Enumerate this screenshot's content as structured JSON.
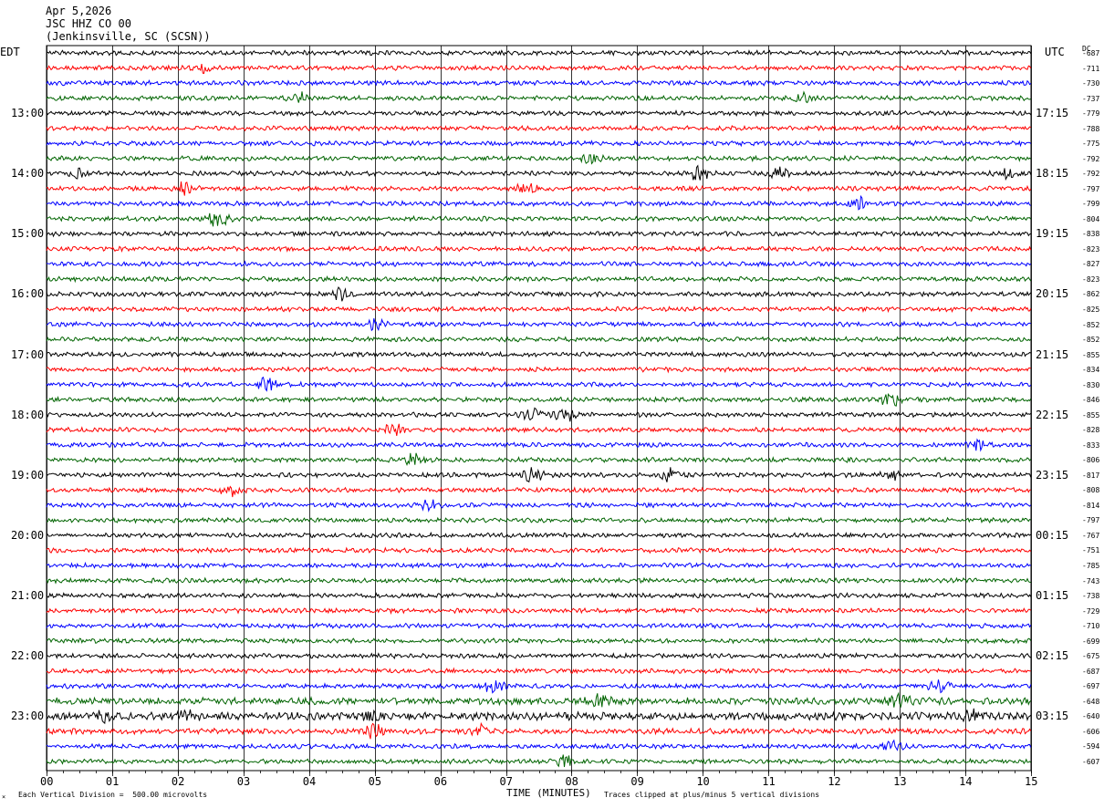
{
  "header": {
    "date": "Apr 5,2026",
    "station": "JSC HHZ CO 00",
    "location": "(Jenkinsville, SC (SCSN))"
  },
  "left_tz": "EDT",
  "right_tz": "UTC",
  "dc_header": "DC",
  "footer": {
    "scale_note": "Each Vertical Division =  500.00 microvolts",
    "clip_note": "Traces clipped at plus/minus 5 vertical divisions",
    "corner_mark": "×"
  },
  "colors": {
    "trace_cycle": [
      "#000000",
      "#ff0000",
      "#0000ff",
      "#006400"
    ],
    "grid": "#000000"
  },
  "chart_data": {
    "type": "line",
    "title": "JSC HHZ CO 00",
    "xlabel": "TIME (MINUTES)",
    "xlim": [
      0,
      15
    ],
    "x_ticks": [
      "00",
      "01",
      "02",
      "03",
      "04",
      "05",
      "06",
      "07",
      "08",
      "09",
      "10",
      "11",
      "12",
      "13",
      "14",
      "15"
    ],
    "trace_count": 48,
    "traces_per_hour": 4,
    "left_hour_labels": [
      "13:00",
      "14:00",
      "15:00",
      "16:00",
      "17:00",
      "18:00",
      "19:00",
      "20:00",
      "21:00",
      "22:00",
      "23:00"
    ],
    "right_hour_labels": [
      "17:15",
      "18:15",
      "19:15",
      "20:15",
      "21:15",
      "22:15",
      "23:15",
      "00:15",
      "01:15",
      "02:15",
      "03:15"
    ],
    "dc_offsets": [
      "-687",
      "-711",
      "-730",
      "-737",
      "-779",
      "-788",
      "-775",
      "-792",
      "-792",
      "-797",
      "-799",
      "-804",
      "-838",
      "-823",
      "-827",
      "-823",
      "-862",
      "-825",
      "-852",
      "-852",
      "-855",
      "-834",
      "-830",
      "-846",
      "-855",
      "-828",
      "-833",
      "-806",
      "-817",
      "-808",
      "-814",
      "-797",
      "-767",
      "-751",
      "-785",
      "-743",
      "-738",
      "-729",
      "-710",
      "-699",
      "-675",
      "-687",
      "-697",
      "-648",
      "-640",
      "-606",
      "-594",
      "-607"
    ],
    "events": [
      {
        "trace": 8,
        "minute": 9.95,
        "amp": 2.2
      },
      {
        "trace": 8,
        "minute": 11.15,
        "amp": 1.4
      },
      {
        "trace": 8,
        "minute": 0.5,
        "amp": 1.2
      },
      {
        "trace": 8,
        "minute": 14.6,
        "amp": 1.2
      },
      {
        "trace": 9,
        "minute": 2.1,
        "amp": 1.5
      },
      {
        "trace": 9,
        "minute": 7.3,
        "amp": 1.2
      },
      {
        "trace": 10,
        "minute": 12.35,
        "amp": 1.5
      },
      {
        "trace": 11,
        "minute": 2.6,
        "amp": 2.6
      },
      {
        "trace": 3,
        "minute": 3.85,
        "amp": 1.6
      },
      {
        "trace": 3,
        "minute": 11.5,
        "amp": 1.6
      },
      {
        "trace": 1,
        "minute": 2.4,
        "amp": 1.2
      },
      {
        "trace": 7,
        "minute": 8.3,
        "amp": 1.4
      },
      {
        "trace": 16,
        "minute": 4.5,
        "amp": 1.5
      },
      {
        "trace": 18,
        "minute": 5.0,
        "amp": 1.6
      },
      {
        "trace": 22,
        "minute": 3.35,
        "amp": 1.5
      },
      {
        "trace": 23,
        "minute": 12.85,
        "amp": 1.8
      },
      {
        "trace": 24,
        "minute": 7.4,
        "amp": 1.5
      },
      {
        "trace": 24,
        "minute": 7.9,
        "amp": 1.7
      },
      {
        "trace": 25,
        "minute": 5.3,
        "amp": 1.6
      },
      {
        "trace": 26,
        "minute": 14.2,
        "amp": 1.4
      },
      {
        "trace": 27,
        "minute": 5.6,
        "amp": 1.5
      },
      {
        "trace": 28,
        "minute": 7.4,
        "amp": 2.0
      },
      {
        "trace": 28,
        "minute": 9.5,
        "amp": 1.6
      },
      {
        "trace": 28,
        "minute": 12.9,
        "amp": 1.8
      },
      {
        "trace": 29,
        "minute": 2.8,
        "amp": 1.4
      },
      {
        "trace": 30,
        "minute": 5.8,
        "amp": 1.3
      },
      {
        "trace": 42,
        "minute": 6.8,
        "amp": 1.7
      },
      {
        "trace": 42,
        "minute": 13.6,
        "amp": 1.8
      },
      {
        "trace": 43,
        "minute": 8.4,
        "amp": 1.6
      },
      {
        "trace": 43,
        "minute": 13.0,
        "amp": 1.4
      },
      {
        "trace": 44,
        "minute": 0.9,
        "amp": 1.8
      },
      {
        "trace": 44,
        "minute": 2.1,
        "amp": 1.9
      },
      {
        "trace": 44,
        "minute": 4.9,
        "amp": 1.4
      },
      {
        "trace": 44,
        "minute": 14.1,
        "amp": 1.7
      },
      {
        "trace": 45,
        "minute": 5.0,
        "amp": 1.8
      },
      {
        "trace": 45,
        "minute": 6.6,
        "amp": 1.5
      },
      {
        "trace": 46,
        "minute": 12.9,
        "amp": 1.4
      },
      {
        "trace": 47,
        "minute": 7.9,
        "amp": 1.4
      }
    ],
    "noisy_traces": [
      {
        "trace": 43,
        "amp": 1.5
      },
      {
        "trace": 44,
        "amp": 1.7
      },
      {
        "trace": 45,
        "amp": 1.2
      }
    ]
  }
}
